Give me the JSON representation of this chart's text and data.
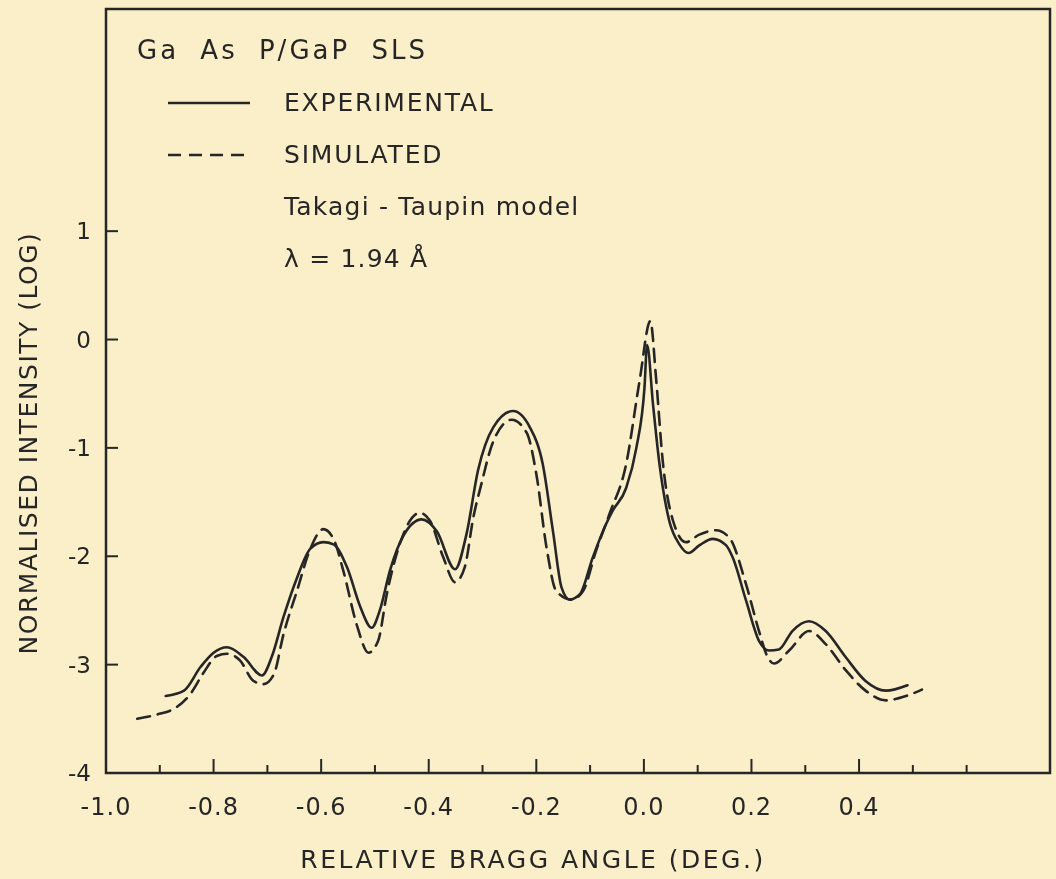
{
  "chart_data": {
    "type": "line",
    "title": "Ga As P/GaP SLS",
    "xlabel": "RELATIVE BRAGG ANGLE (DEG.)",
    "ylabel": "NORMALISED INTENSITY (LOG)",
    "xlim": [
      -1.0,
      0.755
    ],
    "ylim": [
      -4,
      3.05
    ],
    "xticks": [
      {
        "value": -1.0,
        "label": "-1.0"
      },
      {
        "value": -0.9,
        "label": null
      },
      {
        "value": -0.8,
        "label": "-0.8"
      },
      {
        "value": -0.7,
        "label": null
      },
      {
        "value": -0.6,
        "label": "-0.6"
      },
      {
        "value": -0.5,
        "label": null
      },
      {
        "value": -0.4,
        "label": "-0.4"
      },
      {
        "value": -0.3,
        "label": null
      },
      {
        "value": -0.2,
        "label": "-0.2"
      },
      {
        "value": -0.1,
        "label": null
      },
      {
        "value": 0.0,
        "label": "0.0"
      },
      {
        "value": 0.1,
        "label": null
      },
      {
        "value": 0.2,
        "label": "0.2"
      },
      {
        "value": 0.3,
        "label": null
      },
      {
        "value": 0.4,
        "label": "0.4"
      },
      {
        "value": 0.5,
        "label": null
      },
      {
        "value": 0.6,
        "label": null
      }
    ],
    "yticks": [
      -4,
      -3,
      -2,
      -1,
      0,
      1
    ],
    "legend": "top left",
    "annotations": [
      "Takagi - Taupin model",
      "λ = 1.94 Å"
    ],
    "series": [
      {
        "name": "EXPERIMENTAL",
        "color": "#262626",
        "line_style": "solid",
        "x": [
          -0.889,
          -0.855,
          -0.824,
          -0.8,
          -0.775,
          -0.744,
          -0.71,
          -0.692,
          -0.67,
          -0.645,
          -0.62,
          -0.596,
          -0.577,
          -0.552,
          -0.527,
          -0.506,
          -0.491,
          -0.472,
          -0.447,
          -0.413,
          -0.385,
          -0.351,
          -0.33,
          -0.308,
          -0.28,
          -0.243,
          -0.212,
          -0.188,
          -0.169,
          -0.153,
          -0.138,
          -0.119,
          -0.095,
          -0.07,
          -0.058,
          -0.033,
          -0.014,
          0.001,
          0.006,
          0.017,
          0.029,
          0.047,
          0.066,
          0.083,
          0.103,
          0.128,
          0.153,
          0.165,
          0.19,
          0.214,
          0.233,
          0.251,
          0.276,
          0.307,
          0.338,
          0.375,
          0.412,
          0.45,
          0.49
        ],
        "values": [
          -3.29,
          -3.24,
          -3.02,
          -2.89,
          -2.84,
          -2.93,
          -3.1,
          -2.93,
          -2.56,
          -2.2,
          -1.93,
          -1.87,
          -1.89,
          -2.1,
          -2.47,
          -2.66,
          -2.5,
          -2.13,
          -1.81,
          -1.66,
          -1.77,
          -2.12,
          -1.8,
          -1.2,
          -0.81,
          -0.66,
          -0.81,
          -1.15,
          -1.77,
          -2.29,
          -2.4,
          -2.35,
          -2.01,
          -1.7,
          -1.58,
          -1.37,
          -1.0,
          -0.45,
          -0.05,
          -0.6,
          -1.15,
          -1.67,
          -1.89,
          -1.97,
          -1.9,
          -1.84,
          -1.9,
          -2.01,
          -2.41,
          -2.78,
          -2.87,
          -2.86,
          -2.69,
          -2.6,
          -2.69,
          -2.93,
          -3.15,
          -3.24,
          -3.19
        ]
      },
      {
        "name": "SIMULATED",
        "color": "#262626",
        "line_style": "dashed",
        "x": [
          -0.942,
          -0.905,
          -0.868,
          -0.843,
          -0.818,
          -0.794,
          -0.775,
          -0.751,
          -0.726,
          -0.707,
          -0.688,
          -0.67,
          -0.645,
          -0.62,
          -0.596,
          -0.577,
          -0.559,
          -0.534,
          -0.512,
          -0.494,
          -0.478,
          -0.454,
          -0.417,
          -0.398,
          -0.373,
          -0.351,
          -0.333,
          -0.317,
          -0.303,
          -0.28,
          -0.246,
          -0.218,
          -0.2,
          -0.181,
          -0.163,
          -0.135,
          -0.113,
          -0.089,
          -0.064,
          -0.033,
          -0.008,
          0.012,
          0.023,
          0.035,
          0.054,
          0.078,
          0.103,
          0.134,
          0.159,
          0.19,
          0.214,
          0.23,
          0.242,
          0.27,
          0.307,
          0.338,
          0.375,
          0.412,
          0.45,
          0.487,
          0.517
        ],
        "values": [
          -3.5,
          -3.46,
          -3.39,
          -3.27,
          -3.07,
          -2.92,
          -2.9,
          -2.96,
          -3.15,
          -3.18,
          -3.09,
          -2.72,
          -2.32,
          -1.93,
          -1.75,
          -1.84,
          -2.13,
          -2.63,
          -2.89,
          -2.78,
          -2.35,
          -1.89,
          -1.6,
          -1.67,
          -2.01,
          -2.24,
          -2.1,
          -1.64,
          -1.35,
          -0.94,
          -0.74,
          -0.86,
          -1.24,
          -1.92,
          -2.32,
          -2.4,
          -2.32,
          -1.95,
          -1.61,
          -1.15,
          -0.38,
          0.17,
          -0.38,
          -1.12,
          -1.67,
          -1.87,
          -1.8,
          -1.76,
          -1.83,
          -2.26,
          -2.69,
          -2.93,
          -2.99,
          -2.87,
          -2.69,
          -2.81,
          -3.05,
          -3.24,
          -3.33,
          -3.29,
          -3.23
        ]
      }
    ]
  }
}
